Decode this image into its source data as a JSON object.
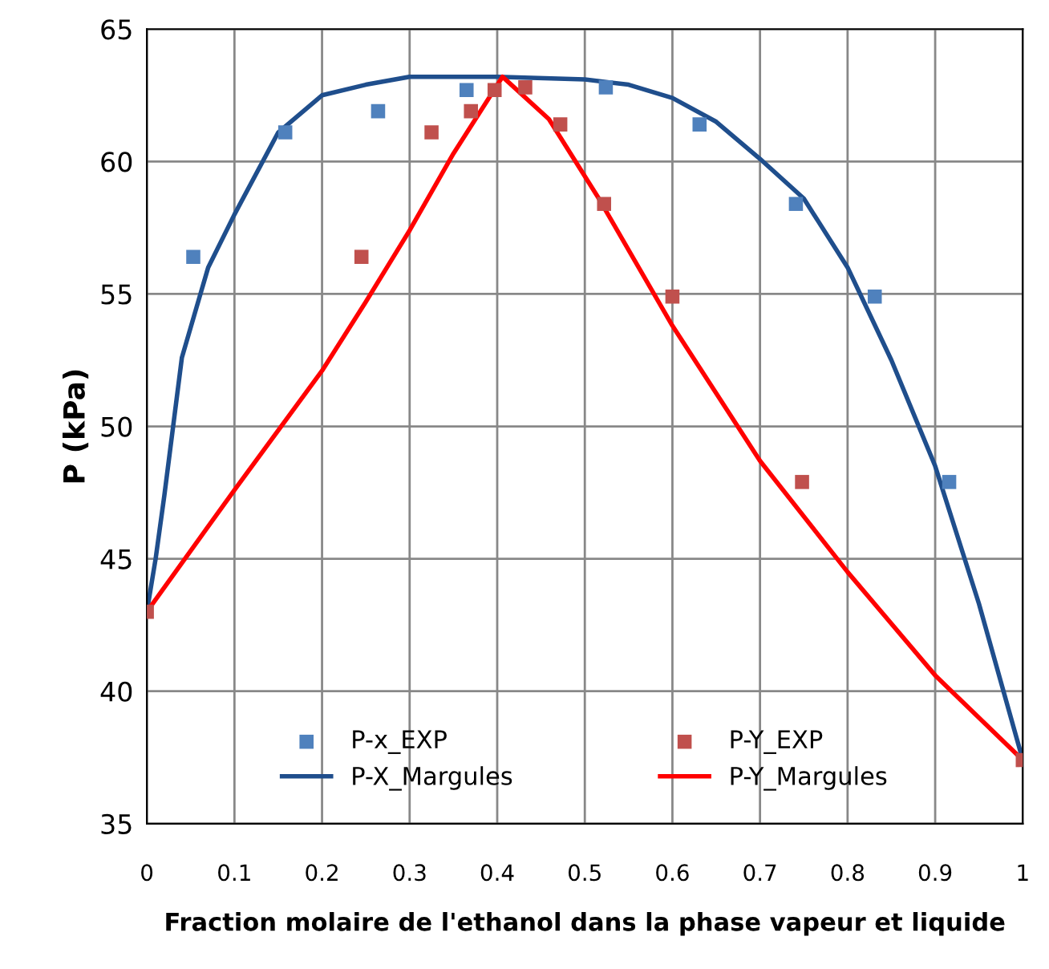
{
  "chart_data": {
    "type": "scatter",
    "xlabel": "Fraction molaire de l'ethanol dans la phase vapeur et liquide",
    "ylabel": "P (kPa)",
    "xlim": [
      0,
      1
    ],
    "xticks": [
      0,
      0.1,
      0.2,
      0.3,
      0.4,
      0.5,
      0.6,
      0.7,
      0.8,
      0.9,
      1
    ],
    "ylim": [
      35,
      65
    ],
    "yticks": [
      35,
      40,
      45,
      50,
      55,
      60,
      65
    ],
    "grid": true,
    "legend": "bottom",
    "series": [
      {
        "name": "P-x_EXP",
        "marker": "square",
        "color": "#4f81bd",
        "x": [
          0.053,
          0.158,
          0.264,
          0.365,
          0.524,
          0.631,
          0.741,
          0.831,
          0.916
        ],
        "values": [
          56.4,
          61.1,
          61.9,
          62.7,
          62.8,
          61.4,
          58.4,
          54.9,
          47.9
        ]
      },
      {
        "name": "P-Y_EXP",
        "marker": "square",
        "color": "#c0504d",
        "x": [
          0,
          0.245,
          0.325,
          0.37,
          0.397,
          0.432,
          0.472,
          0.522,
          0.6,
          0.748,
          1
        ],
        "values": [
          43,
          56.4,
          61.1,
          61.9,
          62.7,
          62.8,
          61.4,
          58.4,
          54.9,
          47.9,
          37.4
        ]
      },
      {
        "name": "P-X_Margules",
        "type": "line",
        "color": "#1f4e8c",
        "x": [
          0,
          0.01,
          0.02,
          0.04,
          0.07,
          0.1,
          0.15,
          0.2,
          0.25,
          0.3,
          0.4,
          0.5,
          0.55,
          0.6,
          0.65,
          0.7,
          0.75,
          0.8,
          0.85,
          0.9,
          0.95,
          1
        ],
        "values": [
          43,
          45,
          47.4,
          52.6,
          56,
          58,
          61.1,
          62.5,
          62.9,
          63.2,
          63.2,
          63.1,
          62.9,
          62.4,
          61.5,
          60.1,
          58.6,
          56,
          52.5,
          48.5,
          43.3,
          37.4
        ]
      },
      {
        "name": "P-Y_Margules",
        "type": "line",
        "color": "#ff0000",
        "x": [
          0,
          0.1,
          0.2,
          0.25,
          0.3,
          0.35,
          0.406,
          0.459,
          0.516,
          0.6,
          0.7,
          0.8,
          0.9,
          1
        ],
        "values": [
          43,
          47.6,
          52.1,
          54.7,
          57.4,
          60.3,
          63.2,
          61.6,
          58.6,
          53.8,
          48.7,
          44.5,
          40.6,
          37.4
        ]
      }
    ]
  }
}
